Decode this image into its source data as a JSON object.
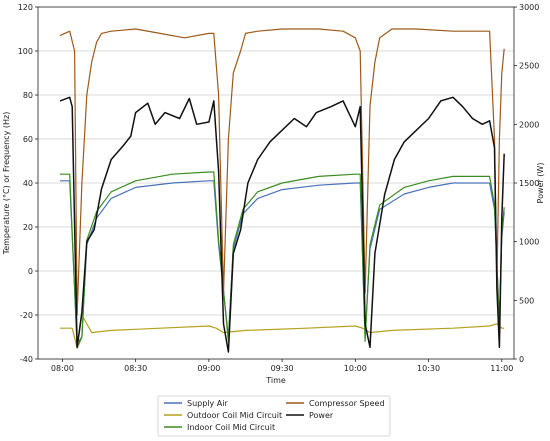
{
  "chart_data": {
    "type": "line",
    "title": "",
    "xlabel": "Time",
    "ylabel_left": "Temperature (°C) or Frequency (Hz)",
    "ylabel_right": "Power (W)",
    "xlim": [
      "07:50",
      "11:05"
    ],
    "ylim_left": [
      -40,
      120
    ],
    "ylim_right": [
      0,
      3000
    ],
    "x_ticks": [
      "08:00",
      "08:30",
      "09:00",
      "09:30",
      "10:00",
      "10:30",
      "11:00"
    ],
    "y_ticks_left": [
      -40,
      -20,
      0,
      20,
      40,
      60,
      80,
      100,
      120
    ],
    "y_ticks_right": [
      0,
      500,
      1000,
      1500,
      2000,
      2500,
      3000
    ],
    "grid": "horizontal",
    "legend_position": "below",
    "series": [
      {
        "name": "Supply Air",
        "axis": "left",
        "color": "#4a72b8",
        "points": [
          [
            "07:59",
            41
          ],
          [
            "08:03",
            41
          ],
          [
            "08:06",
            -33
          ],
          [
            "08:08",
            -30
          ],
          [
            "08:10",
            12
          ],
          [
            "08:14",
            24
          ],
          [
            "08:20",
            33
          ],
          [
            "08:30",
            38
          ],
          [
            "08:45",
            40
          ],
          [
            "09:00",
            41
          ],
          [
            "09:02",
            41
          ],
          [
            "09:04",
            12
          ],
          [
            "09:08",
            -30
          ],
          [
            "09:10",
            10
          ],
          [
            "09:14",
            26
          ],
          [
            "09:20",
            33
          ],
          [
            "09:30",
            37
          ],
          [
            "09:45",
            39
          ],
          [
            "10:00",
            40
          ],
          [
            "10:02",
            40
          ],
          [
            "10:04",
            -30
          ],
          [
            "10:06",
            10
          ],
          [
            "10:10",
            28
          ],
          [
            "10:20",
            35
          ],
          [
            "10:30",
            38
          ],
          [
            "10:40",
            40
          ],
          [
            "10:55",
            40
          ],
          [
            "10:57",
            28
          ],
          [
            "10:59",
            -22
          ],
          [
            "11:00",
            15
          ],
          [
            "11:01",
            27
          ]
        ]
      },
      {
        "name": "Outdoor Coil Mid Circuit",
        "axis": "left",
        "color": "#b5a11c",
        "points": [
          [
            "07:59",
            -26
          ],
          [
            "08:04",
            -26
          ],
          [
            "08:06",
            -35
          ],
          [
            "08:08",
            -20
          ],
          [
            "08:12",
            -28
          ],
          [
            "08:20",
            -27
          ],
          [
            "08:40",
            -26
          ],
          [
            "09:00",
            -25
          ],
          [
            "09:03",
            -26
          ],
          [
            "09:06",
            -28
          ],
          [
            "09:15",
            -27
          ],
          [
            "09:40",
            -26
          ],
          [
            "10:00",
            -25
          ],
          [
            "10:03",
            -26
          ],
          [
            "10:06",
            -28
          ],
          [
            "10:15",
            -27
          ],
          [
            "10:40",
            -26
          ],
          [
            "10:55",
            -25
          ],
          [
            "10:58",
            -24
          ],
          [
            "11:00",
            -26
          ],
          [
            "11:01",
            -26
          ]
        ]
      },
      {
        "name": "Indoor Coil Mid Circuit",
        "axis": "left",
        "color": "#3a8c22",
        "points": [
          [
            "07:59",
            44
          ],
          [
            "08:03",
            44
          ],
          [
            "08:06",
            -35
          ],
          [
            "08:08",
            -30
          ],
          [
            "08:10",
            14
          ],
          [
            "08:14",
            27
          ],
          [
            "08:20",
            36
          ],
          [
            "08:30",
            41
          ],
          [
            "08:45",
            44
          ],
          [
            "09:00",
            45
          ],
          [
            "09:02",
            45
          ],
          [
            "09:04",
            14
          ],
          [
            "09:08",
            -32
          ],
          [
            "09:10",
            12
          ],
          [
            "09:14",
            28
          ],
          [
            "09:20",
            36
          ],
          [
            "09:30",
            40
          ],
          [
            "09:45",
            43
          ],
          [
            "10:00",
            44
          ],
          [
            "10:02",
            44
          ],
          [
            "10:04",
            -32
          ],
          [
            "10:06",
            12
          ],
          [
            "10:10",
            30
          ],
          [
            "10:20",
            38
          ],
          [
            "10:30",
            41
          ],
          [
            "10:40",
            43
          ],
          [
            "10:55",
            43
          ],
          [
            "10:57",
            30
          ],
          [
            "10:59",
            -25
          ],
          [
            "11:00",
            18
          ],
          [
            "11:01",
            29
          ]
        ]
      },
      {
        "name": "Compressor Speed",
        "axis": "left",
        "color": "#9c5a1a",
        "points": [
          [
            "07:59",
            107
          ],
          [
            "08:03",
            109
          ],
          [
            "08:05",
            100
          ],
          [
            "08:06",
            -20
          ],
          [
            "08:08",
            40
          ],
          [
            "08:10",
            80
          ],
          [
            "08:12",
            95
          ],
          [
            "08:14",
            104
          ],
          [
            "08:16",
            108
          ],
          [
            "08:20",
            109
          ],
          [
            "08:30",
            110
          ],
          [
            "08:40",
            108
          ],
          [
            "08:50",
            106
          ],
          [
            "09:00",
            108
          ],
          [
            "09:02",
            108
          ],
          [
            "09:04",
            80
          ],
          [
            "09:06",
            -10
          ],
          [
            "09:08",
            60
          ],
          [
            "09:10",
            90
          ],
          [
            "09:13",
            100
          ],
          [
            "09:15",
            108
          ],
          [
            "09:20",
            109
          ],
          [
            "09:30",
            110
          ],
          [
            "09:45",
            110
          ],
          [
            "09:55",
            109
          ],
          [
            "10:00",
            106
          ],
          [
            "10:02",
            100
          ],
          [
            "10:04",
            -10
          ],
          [
            "10:06",
            75
          ],
          [
            "10:08",
            95
          ],
          [
            "10:10",
            106
          ],
          [
            "10:15",
            110
          ],
          [
            "10:25",
            110
          ],
          [
            "10:40",
            109
          ],
          [
            "10:55",
            109
          ],
          [
            "10:57",
            60
          ],
          [
            "10:58",
            -5
          ],
          [
            "10:59",
            60
          ],
          [
            "11:00",
            90
          ],
          [
            "11:01",
            101
          ]
        ]
      },
      {
        "name": "Power",
        "axis": "right",
        "color": "#111111",
        "points": [
          [
            "07:59",
            2200
          ],
          [
            "08:03",
            2230
          ],
          [
            "08:04",
            2150
          ],
          [
            "08:06",
            100
          ],
          [
            "08:08",
            400
          ],
          [
            "08:10",
            1000
          ],
          [
            "08:13",
            1100
          ],
          [
            "08:16",
            1450
          ],
          [
            "08:20",
            1700
          ],
          [
            "08:25",
            1820
          ],
          [
            "08:28",
            1900
          ],
          [
            "08:30",
            2100
          ],
          [
            "08:35",
            2180
          ],
          [
            "08:38",
            2000
          ],
          [
            "08:42",
            2100
          ],
          [
            "08:48",
            2050
          ],
          [
            "08:52",
            2220
          ],
          [
            "08:55",
            2000
          ],
          [
            "09:00",
            2020
          ],
          [
            "09:02",
            2200
          ],
          [
            "09:04",
            1600
          ],
          [
            "09:06",
            300
          ],
          [
            "09:08",
            60
          ],
          [
            "09:10",
            900
          ],
          [
            "09:13",
            1100
          ],
          [
            "09:16",
            1500
          ],
          [
            "09:20",
            1700
          ],
          [
            "09:25",
            1850
          ],
          [
            "09:30",
            1950
          ],
          [
            "09:35",
            2050
          ],
          [
            "09:40",
            1980
          ],
          [
            "09:44",
            2100
          ],
          [
            "09:50",
            2150
          ],
          [
            "09:55",
            2200
          ],
          [
            "10:00",
            1980
          ],
          [
            "10:02",
            2150
          ],
          [
            "10:04",
            300
          ],
          [
            "10:06",
            100
          ],
          [
            "10:08",
            900
          ],
          [
            "10:12",
            1400
          ],
          [
            "10:16",
            1700
          ],
          [
            "10:20",
            1850
          ],
          [
            "10:25",
            1950
          ],
          [
            "10:30",
            2050
          ],
          [
            "10:35",
            2200
          ],
          [
            "10:40",
            2230
          ],
          [
            "10:44",
            2150
          ],
          [
            "10:48",
            2050
          ],
          [
            "10:52",
            2000
          ],
          [
            "10:55",
            2030
          ],
          [
            "10:57",
            1800
          ],
          [
            "10:58",
            600
          ],
          [
            "10:59",
            100
          ],
          [
            "11:00",
            1200
          ],
          [
            "11:01",
            1750
          ]
        ]
      }
    ]
  },
  "legend": {
    "items": [
      {
        "label": "Supply Air",
        "color": "#4a72b8"
      },
      {
        "label": "Outdoor Coil Mid Circuit",
        "color": "#b5a11c"
      },
      {
        "label": "Indoor Coil Mid Circuit",
        "color": "#3a8c22"
      },
      {
        "label": "Compressor Speed",
        "color": "#9c5a1a"
      },
      {
        "label": "Power",
        "color": "#111111"
      }
    ]
  }
}
